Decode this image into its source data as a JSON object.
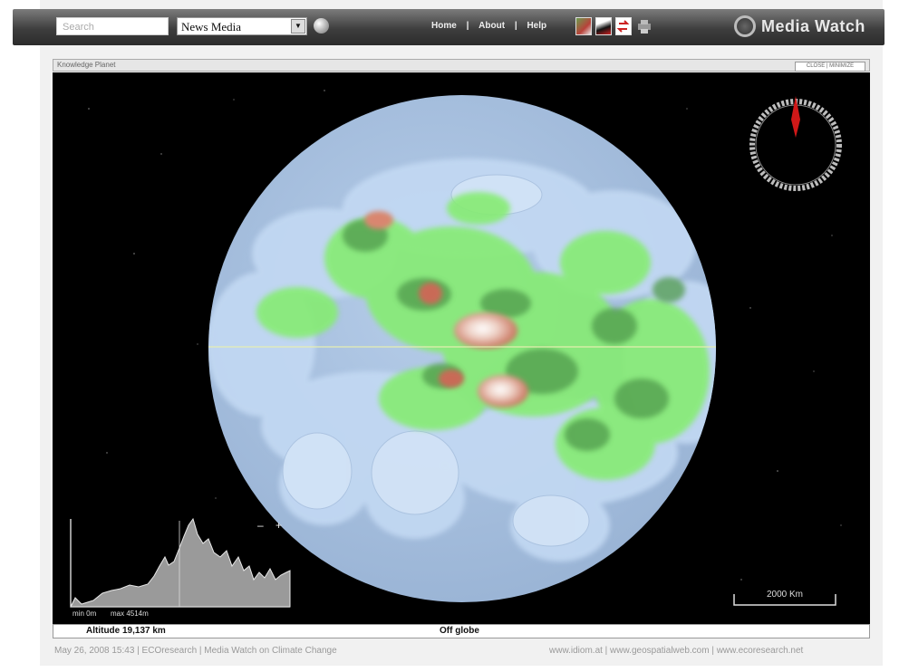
{
  "header": {
    "search_placeholder": "Search",
    "source_select": "News Media",
    "nav": [
      "Home",
      "|",
      "About",
      "|",
      "Help"
    ],
    "brand": "Media Watch"
  },
  "icons": [
    "globe-search-icon",
    "map-view-icon",
    "pointer-view-icon",
    "share-icon",
    "print-icon",
    "media-watch-logo-icon"
  ],
  "panel": {
    "title": "Knowledge Planet",
    "control_label": "CLOSE | MINIMIZE"
  },
  "viewer": {
    "scale_label": "2000 Km",
    "elevation": {
      "min_label": "min 0m",
      "max_label": "max 4514m",
      "zoom_minus": "–",
      "zoom_plus": "+"
    }
  },
  "status": {
    "altitude": "Altitude 19,137 km",
    "location": "Off globe"
  },
  "footer": {
    "left": "May 26, 2008 15:43 | ECOresearch | Media Watch on Climate Change",
    "right": "www.idiom.at | www.geospatialweb.com | www.ecoresearch.net"
  },
  "colors": {
    "ocean": "#a9c3e3",
    "cloud": "#c0d8f2",
    "green": "#7fe86d",
    "dark_green": "#4a8f47",
    "peak": "#d9826c",
    "compass_needle": "#d01818"
  }
}
